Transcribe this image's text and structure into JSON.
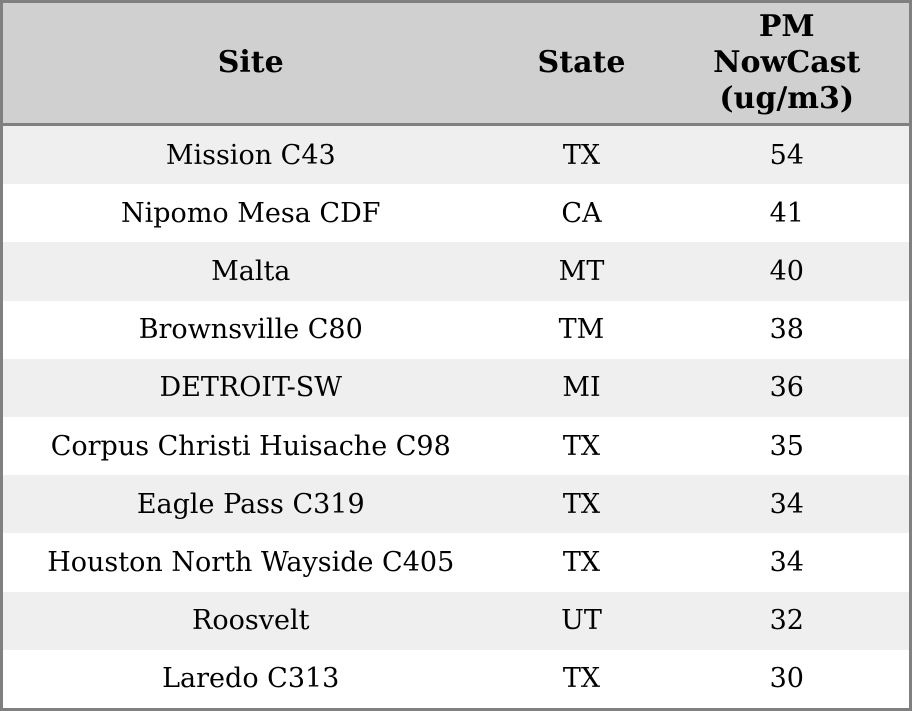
{
  "colors": {
    "outer_border": "#808080",
    "header_bg": "#d0d0d0",
    "row_alt_bg": "#efefef",
    "row_bg": "#ffffff",
    "text": "#000000"
  },
  "table": {
    "columns": [
      {
        "label": "Site"
      },
      {
        "label": "State"
      },
      {
        "label": "PM\nNowCast\n(ug/m3)"
      }
    ],
    "rows": [
      {
        "site": "Mission C43",
        "state": "TX",
        "value": "54"
      },
      {
        "site": "Nipomo Mesa CDF",
        "state": "CA",
        "value": "41"
      },
      {
        "site": "Malta",
        "state": "MT",
        "value": "40"
      },
      {
        "site": "Brownsville C80",
        "state": "TM",
        "value": "38"
      },
      {
        "site": "DETROIT-SW",
        "state": "MI",
        "value": "36"
      },
      {
        "site": "Corpus Christi Huisache C98",
        "state": "TX",
        "value": "35"
      },
      {
        "site": "Eagle Pass C319",
        "state": "TX",
        "value": "34"
      },
      {
        "site": "Houston North Wayside C405",
        "state": "TX",
        "value": "34"
      },
      {
        "site": "Roosvelt",
        "state": "UT",
        "value": "32"
      },
      {
        "site": "Laredo C313",
        "state": "TX",
        "value": "30"
      }
    ]
  },
  "chart_data": {
    "type": "table",
    "columns": [
      "Site",
      "State",
      "PM NowCast (ug/m3)"
    ],
    "rows": [
      [
        "Mission C43",
        "TX",
        54
      ],
      [
        "Nipomo Mesa CDF",
        "CA",
        41
      ],
      [
        "Malta",
        "MT",
        40
      ],
      [
        "Brownsville C80",
        "TM",
        38
      ],
      [
        "DETROIT-SW",
        "MI",
        36
      ],
      [
        "Corpus Christi Huisache C98",
        "TX",
        35
      ],
      [
        "Eagle Pass C319",
        "TX",
        34
      ],
      [
        "Houston North Wayside C405",
        "TX",
        34
      ],
      [
        "Roosvelt",
        "UT",
        32
      ],
      [
        "Laredo C313",
        "TX",
        30
      ]
    ],
    "layout": {
      "striped_rows": true,
      "header_background": "#d0d0d0",
      "value_sorted": "descending"
    }
  }
}
